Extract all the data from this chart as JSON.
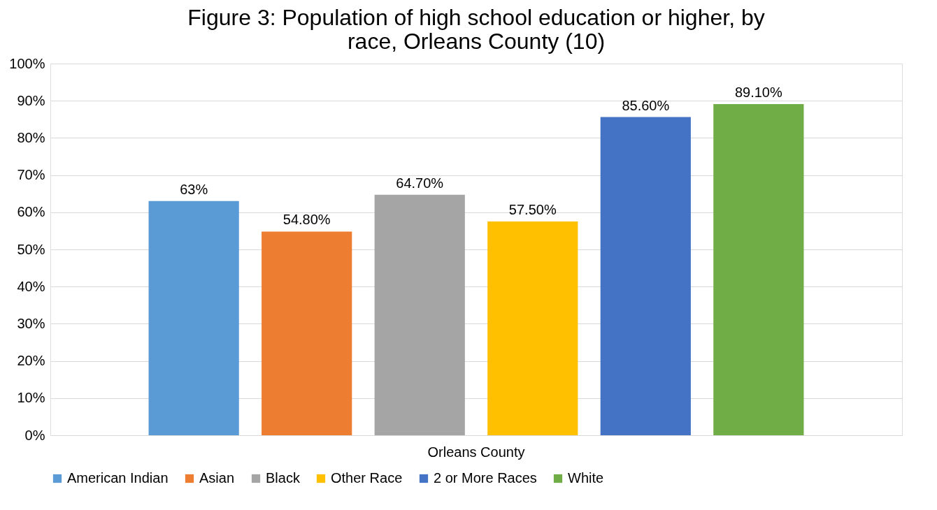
{
  "chart_data": {
    "type": "bar",
    "title": "Figure 3: Population of high school education or higher, by\nrace, Orleans County (10)",
    "categories": [
      "Orleans County"
    ],
    "series": [
      {
        "name": "American Indian",
        "color": "#5b9bd5",
        "values": [
          63
        ],
        "value_labels": [
          "63%"
        ]
      },
      {
        "name": "Asian",
        "color": "#ed7d31",
        "values": [
          54.8
        ],
        "value_labels": [
          "54.80%"
        ]
      },
      {
        "name": "Black",
        "color": "#a5a5a5",
        "values": [
          64.7
        ],
        "value_labels": [
          "64.70%"
        ]
      },
      {
        "name": "Other Race",
        "color": "#ffc000",
        "values": [
          57.5
        ],
        "value_labels": [
          "57.50%"
        ]
      },
      {
        "name": "2 or More Races",
        "color": "#4472c4",
        "values": [
          85.6
        ],
        "value_labels": [
          "85.60%"
        ]
      },
      {
        "name": "White",
        "color": "#70ad47",
        "values": [
          89.1
        ],
        "value_labels": [
          "89.10%"
        ]
      }
    ],
    "ylim": [
      0,
      100
    ],
    "yticks": [
      {
        "value": 0,
        "label": "0%"
      },
      {
        "value": 10,
        "label": "10%"
      },
      {
        "value": 20,
        "label": "20%"
      },
      {
        "value": 30,
        "label": "30%"
      },
      {
        "value": 40,
        "label": "40%"
      },
      {
        "value": 50,
        "label": "50%"
      },
      {
        "value": 60,
        "label": "60%"
      },
      {
        "value": 70,
        "label": "70%"
      },
      {
        "value": 80,
        "label": "80%"
      },
      {
        "value": 90,
        "label": "90%"
      },
      {
        "value": 100,
        "label": "100%"
      }
    ],
    "grid": "y",
    "legend": "bottom"
  }
}
